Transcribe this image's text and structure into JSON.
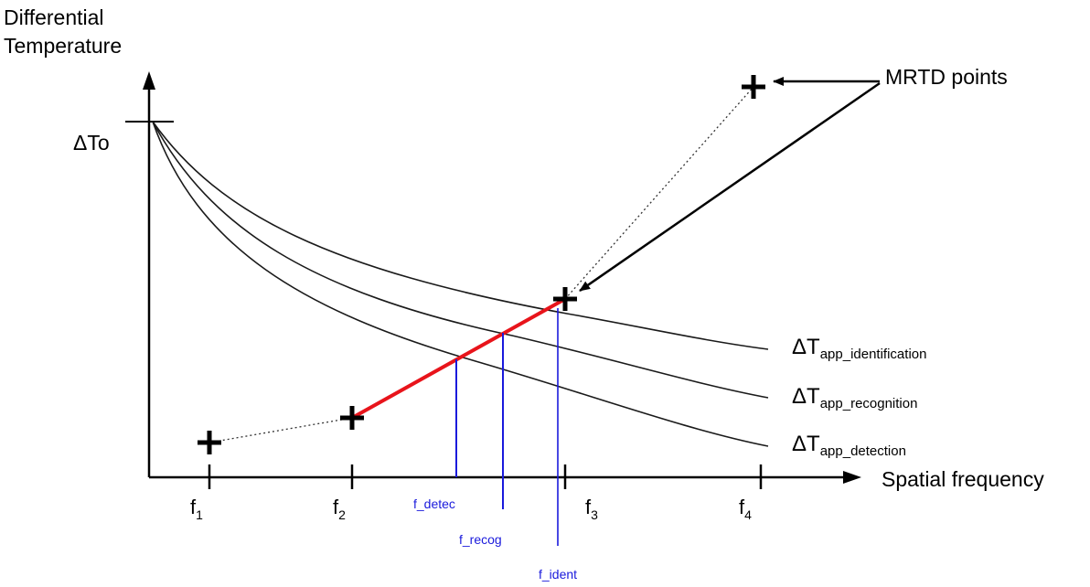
{
  "y_axis_title": [
    "Differential",
    "Temperature"
  ],
  "y_axis_marker": "ΔTo",
  "x_axis_title": "Spatial frequency",
  "mrtd_label": "MRTD points",
  "x_ticks": [
    {
      "base": "f",
      "sub": "1"
    },
    {
      "base": "f",
      "sub": "2"
    },
    {
      "base": "f",
      "sub": "3"
    },
    {
      "base": "f",
      "sub": "4"
    }
  ],
  "curves": [
    {
      "base": "ΔT",
      "sub": "app_identification"
    },
    {
      "base": "ΔT",
      "sub": "app_recognition"
    },
    {
      "base": "ΔT",
      "sub": "app_detection"
    }
  ],
  "intersections": [
    {
      "label": "f_detec"
    },
    {
      "label": "f_recog"
    },
    {
      "label": "f_ident"
    }
  ],
  "colors": {
    "axis": "#000000",
    "curve": "#1a1a1a",
    "mrtd_segment": "#e8141b",
    "intersection": "#1a1adc",
    "dotted": "#333333"
  }
}
